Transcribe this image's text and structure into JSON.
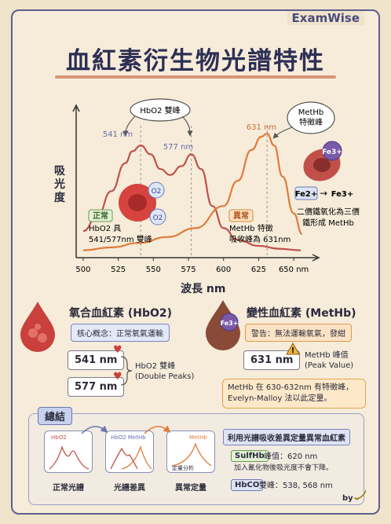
{
  "brand": "ExamWise",
  "title": "血紅素衍生物光譜特性",
  "colors": {
    "hbo2": "#c0514a",
    "methb": "#e07b3b",
    "accent": "#4a4c7e",
    "paper": "#f6ecd9"
  },
  "chart_data": {
    "type": "line",
    "xlabel": "波長 nm",
    "ylabel": "吸光度",
    "xlim": [
      495,
      660
    ],
    "ylim": [
      0,
      1
    ],
    "xticks": [
      "500",
      "525",
      "550",
      "575",
      "600",
      "625",
      "650 nm"
    ],
    "series": [
      {
        "name": "HbO2",
        "x": [
          500,
          510,
          520,
          530,
          535,
          541,
          548,
          555,
          562,
          570,
          577,
          584,
          592,
          600,
          610,
          625,
          640,
          655
        ],
        "y": [
          0.18,
          0.28,
          0.45,
          0.64,
          0.72,
          0.76,
          0.7,
          0.6,
          0.56,
          0.62,
          0.7,
          0.6,
          0.35,
          0.2,
          0.12,
          0.08,
          0.06,
          0.05
        ]
      },
      {
        "name": "MetHb",
        "x": [
          500,
          520,
          540,
          560,
          580,
          600,
          610,
          620,
          627,
          631,
          636,
          642,
          650,
          656
        ],
        "y": [
          0.05,
          0.07,
          0.1,
          0.14,
          0.2,
          0.35,
          0.52,
          0.73,
          0.82,
          0.84,
          0.76,
          0.55,
          0.3,
          0.16
        ]
      }
    ],
    "annotations": {
      "peak1": "541 nm",
      "peak2": "577 nm",
      "peak3": "631 nm",
      "double_peak_bubble": "HbO2 雙峰",
      "methb_bubble_line1": "MetHb",
      "methb_bubble_line2": "特徵峰",
      "normal_tag": "正常",
      "normal_line1": "HbO2 具",
      "normal_line2": "541/577nm 雙峰",
      "abnormal_tag": "異常",
      "abnormal_line1": "MetHb 特徵",
      "abnormal_line2": "吸收峰為 631nm",
      "o2": "O2",
      "fe3": "Fe3+",
      "fe2_label": "Fe2+",
      "fe3_label": "Fe3+",
      "arrow": "→",
      "conv_line1": "二價鐵氧化為三價",
      "conv_line2": "鐵形成 MetHb"
    }
  },
  "hbo2_section": {
    "title": "氧合血紅素 (HbO2)",
    "concept": "核心概念：正常氧氣運輸",
    "peak1": "541 nm",
    "peak2": "577 nm",
    "label_line1": "HbO2 雙峰",
    "label_line2": "(Double Peaks)"
  },
  "methb_section": {
    "title": "變性血紅素 (MetHb)",
    "warning": "警告：無法運輸氧氣，發紺",
    "peak": "631 nm",
    "warn_icon": "!",
    "label_line1": "MetHb 峰值",
    "label_line2": "(Peak Value)",
    "note_line1": "MetHb 在 630-632nm 有特徵峰，",
    "note_line2": "Evelyn-Malloy 法以此定量。",
    "fe3": "Fe3+"
  },
  "summary": {
    "tag": "總結",
    "steps": [
      {
        "label": "正常光譜",
        "mini_title": "HbO2"
      },
      {
        "label": "光譜差異",
        "mini_title": "HbO2  MetHb"
      },
      {
        "label": "異常定量",
        "mini_title": "MetHb",
        "mini_sub": "定量分析"
      }
    ],
    "headline": "利用光譜吸收差異定量異常血紅素",
    "items": [
      {
        "tag": "SulfHb",
        "text": "峰值：620 nm",
        "sub": "加入氰化物後吸光度不會下降。"
      },
      {
        "tag": "HbCO",
        "text": "雙峰：538, 568 nm"
      }
    ],
    "by": "by"
  }
}
